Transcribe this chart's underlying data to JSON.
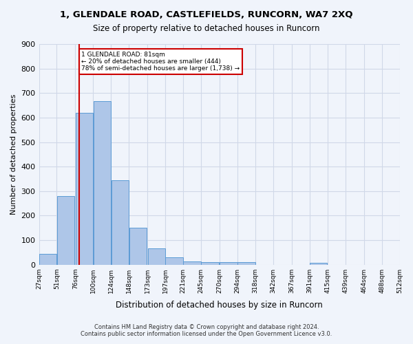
{
  "title": "1, GLENDALE ROAD, CASTLEFIELDS, RUNCORN, WA7 2XQ",
  "subtitle": "Size of property relative to detached houses in Runcorn",
  "xlabel": "Distribution of detached houses by size in Runcorn",
  "ylabel": "Number of detached properties",
  "footer_line1": "Contains HM Land Registry data © Crown copyright and database right 2024.",
  "footer_line2": "Contains public sector information licensed under the Open Government Licence v3.0.",
  "bin_labels": [
    "27sqm",
    "51sqm",
    "76sqm",
    "100sqm",
    "124sqm",
    "148sqm",
    "173sqm",
    "197sqm",
    "221sqm",
    "245sqm",
    "270sqm",
    "294sqm",
    "318sqm",
    "342sqm",
    "367sqm",
    "391sqm",
    "415sqm",
    "439sqm",
    "464sqm",
    "488sqm",
    "512sqm"
  ],
  "bin_edges": [
    27,
    51,
    76,
    100,
    124,
    148,
    173,
    197,
    221,
    245,
    270,
    294,
    318,
    342,
    367,
    391,
    415,
    439,
    464,
    488,
    512
  ],
  "bar_values": [
    45,
    280,
    620,
    668,
    345,
    150,
    65,
    30,
    13,
    10,
    10,
    10,
    0,
    0,
    0,
    8,
    0,
    0,
    0,
    0
  ],
  "bar_color": "#aec6e8",
  "bar_edge_color": "#5b9bd5",
  "grid_color": "#d0d8e8",
  "property_size": 81,
  "vline_color": "#cc0000",
  "annotation_text": "1 GLENDALE ROAD: 81sqm\n← 20% of detached houses are smaller (444)\n78% of semi-detached houses are larger (1,738) →",
  "annotation_box_color": "#ffffff",
  "annotation_box_edge": "#cc0000",
  "ylim": [
    0,
    900
  ],
  "yticks": [
    0,
    100,
    200,
    300,
    400,
    500,
    600,
    700,
    800,
    900
  ],
  "bg_color": "#f0f4fb"
}
